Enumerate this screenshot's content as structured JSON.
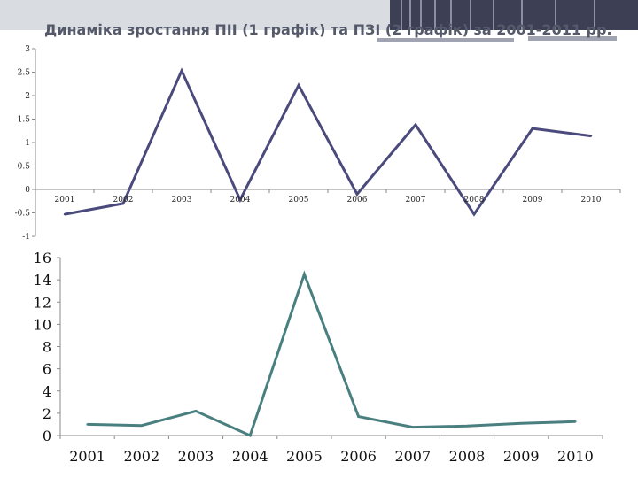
{
  "title": "Динаміка зростання ПІІ (1 графік) та ПЗІ (2 графік) за 2001-2011 рр.",
  "colors": {
    "chart1_line": "#4a4a7c",
    "chart2_line": "#4a7f80",
    "axis": "#888888"
  },
  "chart_data": [
    {
      "type": "line",
      "title": "",
      "xlabel": "",
      "ylabel": "",
      "categories": [
        "2001",
        "2002",
        "2003",
        "2004",
        "2005",
        "2006",
        "2007",
        "2008",
        "2009",
        "2010"
      ],
      "series": [
        {
          "values": [
            -0.53,
            -0.3,
            2.53,
            -0.22,
            2.22,
            -0.1,
            1.38,
            -0.53,
            1.3,
            1.14
          ]
        }
      ],
      "ylim": [
        -1,
        3
      ],
      "yticks": [
        -1,
        -0.5,
        0,
        0.5,
        1,
        1.5,
        2,
        2.5,
        3
      ],
      "ytick_labels": [
        "-1",
        "-0.5",
        "0",
        "0.5",
        "1",
        "1.5",
        "2",
        "2.5",
        "3"
      ],
      "grid": false,
      "legend": "none"
    },
    {
      "type": "line",
      "title": "",
      "xlabel": "",
      "ylabel": "",
      "categories": [
        "2001",
        "2002",
        "2003",
        "2004",
        "2005",
        "2006",
        "2007",
        "2008",
        "2009",
        "2010"
      ],
      "series": [
        {
          "values": [
            1.0,
            0.9,
            2.2,
            0.0,
            14.5,
            1.7,
            0.75,
            0.85,
            1.1,
            1.25
          ]
        }
      ],
      "ylim": [
        0,
        16
      ],
      "yticks": [
        0,
        2,
        4,
        6,
        8,
        10,
        12,
        14,
        16
      ],
      "ytick_labels": [
        "0",
        "2",
        "4",
        "6",
        "8",
        "10",
        "12",
        "14",
        "16"
      ],
      "grid": false,
      "legend": "none"
    }
  ]
}
